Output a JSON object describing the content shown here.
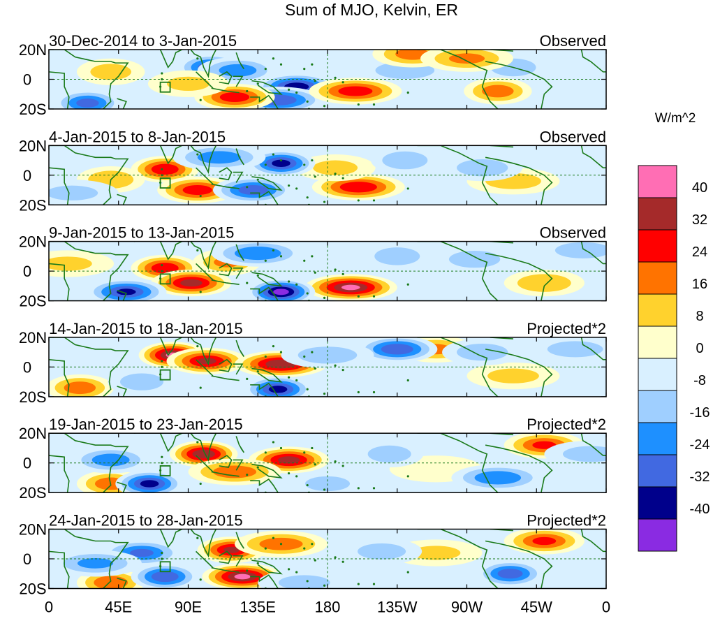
{
  "chart_data": {
    "type": "heatmap",
    "title": "Sum of MJO, Kelvin, ER",
    "colorbar": {
      "unit": "W/m^2",
      "levels": [
        40,
        32,
        24,
        16,
        8,
        0,
        -8,
        -16,
        -24,
        -32,
        -40
      ],
      "colors": [
        "#ff6eb4",
        "#a52a2a",
        "#ff0000",
        "#ff7300",
        "#ffd22d",
        "#ffffcc",
        "#d9f0ff",
        "#9fcfff",
        "#1e90ff",
        "#4169e1",
        "#00008b",
        "#8a2be2"
      ]
    },
    "x_ticks": [
      {
        "label": "0",
        "lon": 0
      },
      {
        "label": "45E",
        "lon": 45
      },
      {
        "label": "90E",
        "lon": 90
      },
      {
        "label": "135E",
        "lon": 135
      },
      {
        "label": "180",
        "lon": 180
      },
      {
        "label": "135W",
        "lon": 225
      },
      {
        "label": "90W",
        "lon": 270
      },
      {
        "label": "45W",
        "lon": 315
      },
      {
        "label": "0",
        "lon": 360
      }
    ],
    "y_ticks": [
      {
        "label": "20N",
        "lat": 20
      },
      {
        "label": "0",
        "lat": 0
      },
      {
        "label": "20S",
        "lat": -20
      }
    ],
    "panels": [
      {
        "period": "30-Dec-2014 to 3-Jan-2015",
        "label": "Observed",
        "blobs": [
          {
            "lon": 105,
            "lat": 8,
            "v": -32
          },
          {
            "lon": 160,
            "lat": -5,
            "v": -38
          },
          {
            "lon": 148,
            "lat": -14,
            "v": -32
          },
          {
            "lon": 25,
            "lat": -16,
            "v": -28
          },
          {
            "lon": 122,
            "lat": 6,
            "v": -22
          },
          {
            "lon": 230,
            "lat": 6,
            "v": -14
          },
          {
            "lon": 300,
            "lat": 8,
            "v": -16
          },
          {
            "lon": 120,
            "lat": -12,
            "v": 30
          },
          {
            "lon": 198,
            "lat": -8,
            "v": 30
          },
          {
            "lon": 290,
            "lat": -8,
            "v": 22
          },
          {
            "lon": 235,
            "lat": 17,
            "v": 20
          },
          {
            "lon": 270,
            "lat": 14,
            "v": 18
          },
          {
            "lon": 40,
            "lat": 5,
            "v": 12
          },
          {
            "lon": 90,
            "lat": -3,
            "v": 9
          }
        ]
      },
      {
        "period": "4-Jan-2015 to 8-Jan-2015",
        "label": "Observed",
        "blobs": [
          {
            "lon": 75,
            "lat": 4,
            "v": 32
          },
          {
            "lon": 96,
            "lat": -10,
            "v": 30
          },
          {
            "lon": 200,
            "lat": -8,
            "v": 32
          },
          {
            "lon": 40,
            "lat": -3,
            "v": 16
          },
          {
            "lon": 185,
            "lat": 5,
            "v": 10
          },
          {
            "lon": 300,
            "lat": -4,
            "v": 12
          },
          {
            "lon": 150,
            "lat": 8,
            "v": -36
          },
          {
            "lon": 132,
            "lat": -10,
            "v": -30
          },
          {
            "lon": 110,
            "lat": 12,
            "v": -22
          },
          {
            "lon": 230,
            "lat": 10,
            "v": -16
          },
          {
            "lon": 280,
            "lat": 5,
            "v": -14
          },
          {
            "lon": 15,
            "lat": -12,
            "v": -10
          }
        ]
      },
      {
        "period": "9-Jan-2015 to 13-Jan-2015",
        "label": "Observed",
        "blobs": [
          {
            "lon": 75,
            "lat": 2,
            "v": 32
          },
          {
            "lon": 92,
            "lat": -8,
            "v": 36
          },
          {
            "lon": 195,
            "lat": -11,
            "v": 42
          },
          {
            "lon": 115,
            "lat": 6,
            "v": 18
          },
          {
            "lon": 320,
            "lat": -8,
            "v": 16
          },
          {
            "lon": 12,
            "lat": 5,
            "v": 9
          },
          {
            "lon": 150,
            "lat": -14,
            "v": -44
          },
          {
            "lon": 50,
            "lat": -14,
            "v": -34
          },
          {
            "lon": 135,
            "lat": 12,
            "v": -24
          },
          {
            "lon": 225,
            "lat": 10,
            "v": -16
          },
          {
            "lon": 275,
            "lat": 8,
            "v": -14
          },
          {
            "lon": 345,
            "lat": 14,
            "v": -12
          }
        ]
      },
      {
        "period": "14-Jan-2015 to 18-Jan-2015",
        "label": "Projected*2",
        "blobs": [
          {
            "lon": 80,
            "lat": 8,
            "v": 42
          },
          {
            "lon": 102,
            "lat": 4,
            "v": 34
          },
          {
            "lon": 150,
            "lat": 2,
            "v": 40
          },
          {
            "lon": 20,
            "lat": -14,
            "v": 22
          },
          {
            "lon": 250,
            "lat": 12,
            "v": 18
          },
          {
            "lon": 300,
            "lat": -6,
            "v": 10
          },
          {
            "lon": 148,
            "lat": -15,
            "v": -36
          },
          {
            "lon": 225,
            "lat": 12,
            "v": -32
          },
          {
            "lon": 180,
            "lat": 8,
            "v": -14
          },
          {
            "lon": 60,
            "lat": -10,
            "v": -14
          },
          {
            "lon": 280,
            "lat": 10,
            "v": -14
          },
          {
            "lon": 340,
            "lat": 12,
            "v": -12
          }
        ]
      },
      {
        "period": "19-Jan-2015 to 23-Jan-2015",
        "label": "Projected*2",
        "blobs": [
          {
            "lon": 100,
            "lat": 6,
            "v": 40
          },
          {
            "lon": 155,
            "lat": 2,
            "v": 36
          },
          {
            "lon": 120,
            "lat": -6,
            "v": 22
          },
          {
            "lon": 40,
            "lat": -14,
            "v": 22
          },
          {
            "lon": 320,
            "lat": 12,
            "v": 26
          },
          {
            "lon": 250,
            "lat": -4,
            "v": 8
          },
          {
            "lon": 65,
            "lat": -14,
            "v": -36
          },
          {
            "lon": 40,
            "lat": 2,
            "v": -22
          },
          {
            "lon": 290,
            "lat": -10,
            "v": -24
          },
          {
            "lon": 220,
            "lat": 6,
            "v": -14
          },
          {
            "lon": 180,
            "lat": -14,
            "v": -10
          },
          {
            "lon": 350,
            "lat": 6,
            "v": -12
          }
        ]
      },
      {
        "period": "24-Jan-2015 to 28-Jan-2015",
        "label": "Projected*2",
        "blobs": [
          {
            "lon": 118,
            "lat": 6,
            "v": 34
          },
          {
            "lon": 125,
            "lat": -12,
            "v": 42
          },
          {
            "lon": 150,
            "lat": 10,
            "v": 22
          },
          {
            "lon": 40,
            "lat": -16,
            "v": 24
          },
          {
            "lon": 320,
            "lat": 12,
            "v": 26
          },
          {
            "lon": 250,
            "lat": 4,
            "v": 9
          },
          {
            "lon": 75,
            "lat": -12,
            "v": -32
          },
          {
            "lon": 60,
            "lat": 4,
            "v": -26
          },
          {
            "lon": 30,
            "lat": -3,
            "v": -18
          },
          {
            "lon": 298,
            "lat": -10,
            "v": -30
          },
          {
            "lon": 215,
            "lat": 5,
            "v": -12
          },
          {
            "lon": 165,
            "lat": -16,
            "v": -10
          }
        ]
      }
    ]
  }
}
